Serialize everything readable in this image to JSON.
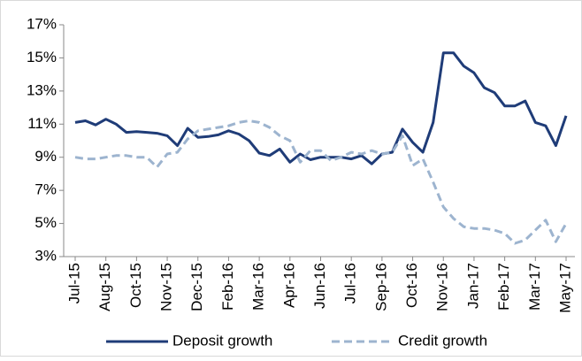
{
  "chart_data": {
    "type": "line",
    "categories": [
      "Jul-15",
      null,
      null,
      "Aug-15",
      null,
      null,
      "Oct-15",
      null,
      null,
      "Nov-15",
      null,
      null,
      "Dec-15",
      null,
      null,
      "Feb-16",
      null,
      null,
      "Mar-16",
      null,
      null,
      "Apr-16",
      null,
      null,
      "Jun-16",
      null,
      null,
      "Jul-16",
      null,
      null,
      "Sep-16",
      null,
      null,
      "Oct-16",
      null,
      null,
      "Nov-16",
      null,
      null,
      "Jan-17",
      null,
      null,
      "Feb-17",
      null,
      null,
      "Mar-17",
      null,
      null,
      "May-17"
    ],
    "series": [
      {
        "name": "Deposit growth",
        "color": "#1f3c78",
        "dashed": false,
        "values": [
          11.1,
          11.2,
          10.95,
          11.3,
          11.0,
          10.5,
          10.55,
          10.5,
          10.45,
          10.3,
          9.7,
          10.75,
          10.2,
          10.25,
          10.35,
          10.6,
          10.4,
          10.0,
          9.25,
          9.1,
          9.5,
          8.7,
          9.2,
          8.85,
          9.0,
          9.0,
          9.0,
          8.9,
          9.1,
          8.6,
          9.2,
          9.3,
          10.7,
          9.9,
          9.3,
          11.1,
          15.3,
          15.3,
          14.5,
          14.1,
          13.2,
          12.9,
          12.1,
          12.1,
          12.4,
          11.1,
          10.9,
          9.7,
          11.5
        ]
      },
      {
        "name": "Credit growth",
        "color": "#9db4cf",
        "dashed": true,
        "values": [
          9.0,
          8.9,
          8.9,
          9.0,
          9.1,
          9.1,
          9.0,
          9.0,
          8.4,
          9.2,
          9.3,
          10.1,
          10.6,
          10.7,
          10.8,
          10.9,
          11.1,
          11.2,
          11.1,
          10.8,
          10.3,
          10.0,
          8.7,
          9.4,
          9.4,
          8.8,
          9.0,
          9.3,
          9.2,
          9.4,
          9.2,
          9.3,
          10.3,
          8.5,
          8.9,
          7.5,
          6.0,
          5.3,
          4.8,
          4.7,
          4.7,
          4.6,
          4.4,
          3.8,
          4.0,
          4.6,
          5.2,
          3.9,
          5.0
        ]
      }
    ],
    "ylim": [
      3,
      17
    ],
    "yticks": [
      {
        "value": 3,
        "label": "3%"
      },
      {
        "value": 5,
        "label": "5%"
      },
      {
        "value": 7,
        "label": "7%"
      },
      {
        "value": 9,
        "label": "9%"
      },
      {
        "value": 11,
        "label": "11%"
      },
      {
        "value": 13,
        "label": "13%"
      },
      {
        "value": 15,
        "label": "15%"
      },
      {
        "value": 17,
        "label": "17%"
      }
    ],
    "grid": false,
    "legend": "bottom"
  }
}
